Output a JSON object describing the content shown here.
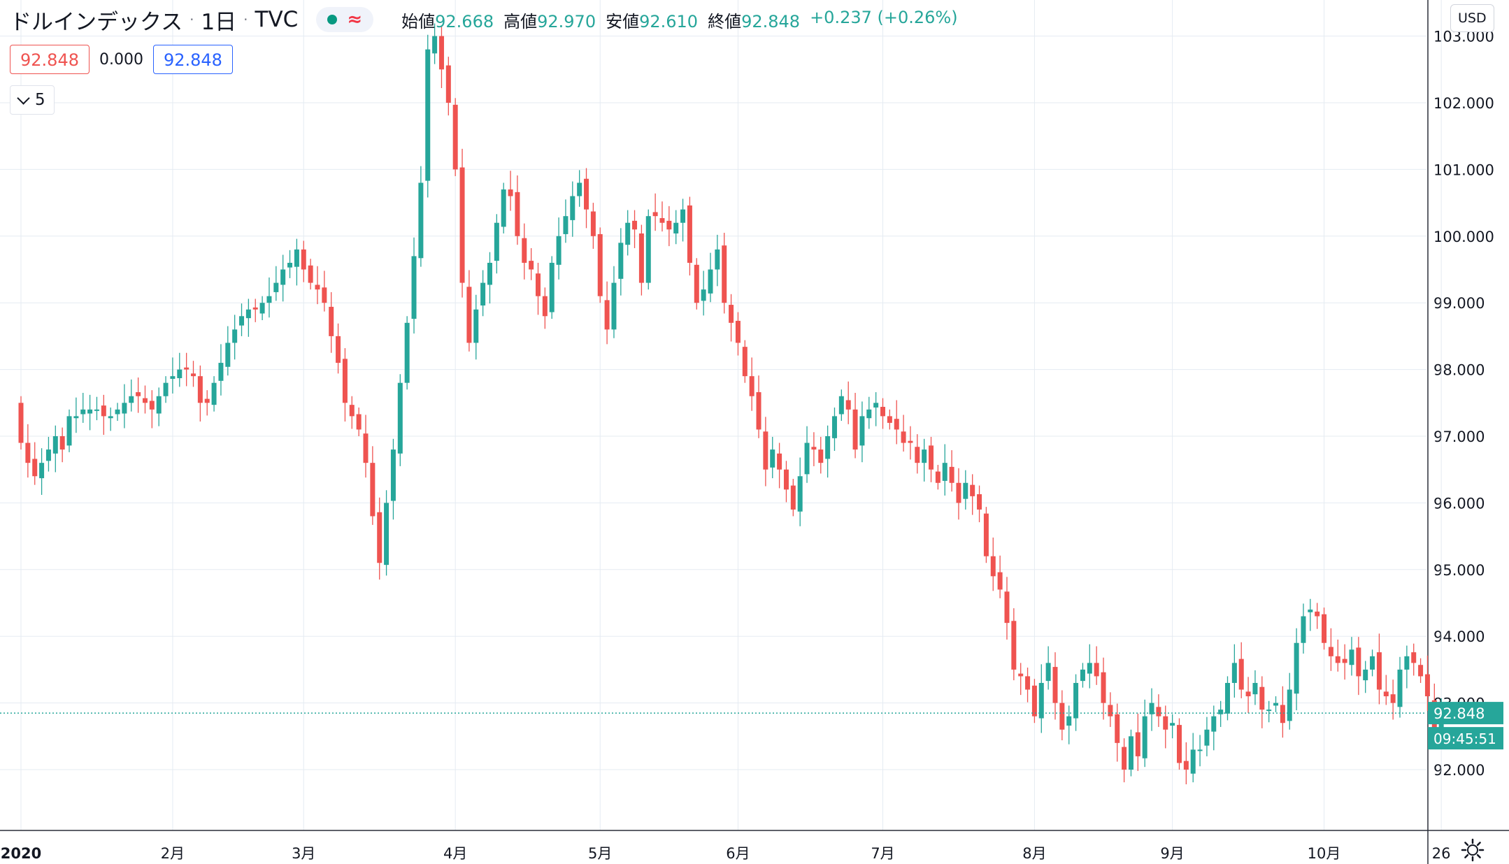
{
  "header": {
    "symbol": "ドルインデックス",
    "interval": "1日",
    "exchange": "TVC",
    "delayed_symbol": "≈",
    "open_label": "始値",
    "open": "92.668",
    "high_label": "高値",
    "high": "92.970",
    "low_label": "安値",
    "low": "92.610",
    "close_label": "終値",
    "close": "92.848",
    "change": "+0.237 (+0.26%)"
  },
  "quote_boxes": {
    "bid": "92.848",
    "spread": "0.000",
    "ask": "92.848"
  },
  "indicators_toggle": {
    "count": "5"
  },
  "price_scale": {
    "currency": "USD"
  },
  "colors": {
    "up": "#26a69a",
    "down": "#ef5350",
    "grid": "#e5ebf2",
    "last_price": "#26a69a"
  },
  "icons": [
    "chevron-down-icon",
    "settings-gear-icon",
    "market-status-dot-icon",
    "delayed-data-icon"
  ],
  "chart_data": {
    "type": "candlestick",
    "interval": "1D",
    "y_range": [
      91.5,
      103.0
    ],
    "y_ticks": [
      "92.000",
      "93.000",
      "94.000",
      "95.000",
      "96.000",
      "97.000",
      "98.000",
      "99.000",
      "100.000",
      "101.000",
      "102.000",
      "103.000"
    ],
    "x_labels": [
      {
        "text": "2020",
        "day": 0
      },
      {
        "text": "2月",
        "day": 22
      },
      {
        "text": "3月",
        "day": 41
      },
      {
        "text": "4月",
        "day": 63
      },
      {
        "text": "5月",
        "day": 84
      },
      {
        "text": "6月",
        "day": 104
      },
      {
        "text": "7月",
        "day": 125
      },
      {
        "text": "8月",
        "day": 147
      },
      {
        "text": "9月",
        "day": 167
      },
      {
        "text": "10月",
        "day": 189
      },
      {
        "text": "26",
        "day": 206
      }
    ],
    "last_price": "92.848",
    "countdown": "09:45:51",
    "closes": [
      96.9,
      96.6,
      96.4,
      96.6,
      96.8,
      97.0,
      96.8,
      97.3,
      97.3,
      97.4,
      97.4,
      97.4,
      97.3,
      97.3,
      97.4,
      97.5,
      97.6,
      97.6,
      97.5,
      97.4,
      97.6,
      97.8,
      97.9,
      98.0,
      98.0,
      97.9,
      97.5,
      97.5,
      97.8,
      98.1,
      98.4,
      98.6,
      98.8,
      98.9,
      98.9,
      99.0,
      99.1,
      99.3,
      99.5,
      99.6,
      99.8,
      99.5,
      99.3,
      99.2,
      99.0,
      98.5,
      98.1,
      97.5,
      97.3,
      97.1,
      96.6,
      95.8,
      95.1,
      96.0,
      96.8,
      97.8,
      98.7,
      99.7,
      100.8,
      102.8,
      103.0,
      102.5,
      102.0,
      101.0,
      99.3,
      98.4,
      98.9,
      99.3,
      99.6,
      100.2,
      100.7,
      100.6,
      100.0,
      99.6,
      99.5,
      99.1,
      98.8,
      99.6,
      100.0,
      100.3,
      100.6,
      100.8,
      100.4,
      100.0,
      99.1,
      98.6,
      99.3,
      99.9,
      100.2,
      100.1,
      99.3,
      100.3,
      100.3,
      100.2,
      100.1,
      100.2,
      100.4,
      99.6,
      99.0,
      99.2,
      99.5,
      99.8,
      99.0,
      98.7,
      98.4,
      97.9,
      97.6,
      97.1,
      96.5,
      96.8,
      96.5,
      96.2,
      95.9,
      96.4,
      96.9,
      96.8,
      96.6,
      97.0,
      97.3,
      97.6,
      97.4,
      96.8,
      97.3,
      97.4,
      97.5,
      97.3,
      97.2,
      97.1,
      96.9,
      96.9,
      96.6,
      96.8,
      96.5,
      96.3,
      96.6,
      96.3,
      96.0,
      96.3,
      96.1,
      95.9,
      95.2,
      94.9,
      94.7,
      94.2,
      93.5,
      93.4,
      93.2,
      92.8,
      93.3,
      93.6,
      93.0,
      92.6,
      92.8,
      93.3,
      93.5,
      93.6,
      93.4,
      93.0,
      92.8,
      92.4,
      92.0,
      92.5,
      92.2,
      92.8,
      93.0,
      92.8,
      92.6,
      92.7,
      92.1,
      92.0,
      92.3,
      92.3,
      92.6,
      92.8,
      92.9,
      93.3,
      93.6,
      93.2,
      93.1,
      93.3,
      92.9,
      92.9,
      93.0,
      92.7,
      93.2,
      93.9,
      94.3,
      94.4,
      94.3,
      93.9,
      93.7,
      93.6,
      93.6,
      93.8,
      93.4,
      93.5,
      93.7,
      93.2,
      93.1,
      93.0,
      93.5,
      93.7,
      93.6,
      93.4,
      93.1,
      92.6,
      92.85
    ]
  }
}
